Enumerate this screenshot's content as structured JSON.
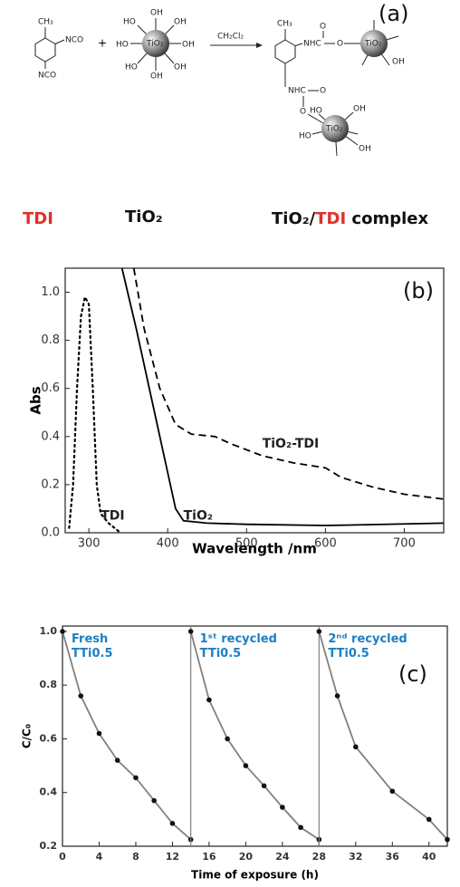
{
  "scheme": {
    "panel": "(a)",
    "ch3": "CH₃",
    "nco": "NCO",
    "plus": "+",
    "solvent": "CH₂Cl₂",
    "tio2": "TiO₂",
    "oh": "OH",
    "ho": "HO",
    "nhc": "NHC",
    "o": "O",
    "labels": {
      "tdi": "TDI",
      "tio2": "TiO₂",
      "complex": [
        "TiO₂/",
        "TDI",
        " complex"
      ]
    }
  },
  "chart_data": [
    {
      "type": "line",
      "panel": "(b)",
      "x_label": "Wavelength /nm",
      "y_label": "Abs",
      "xlim": [
        270,
        750
      ],
      "xticks": [
        300,
        400,
        500,
        600,
        700
      ],
      "ylim": [
        0,
        1.1
      ],
      "yticks": [
        {
          "value": 0,
          "label": "0.0"
        },
        0.2,
        0.4,
        0.6,
        0.8,
        {
          "value": 1,
          "label": "1.0"
        }
      ],
      "series": [
        {
          "name": "TDI",
          "color": "#000000",
          "style": "dotted",
          "x": [
            275,
            280,
            285,
            290,
            295,
            300,
            305,
            310,
            315,
            325,
            340
          ],
          "values": [
            0.02,
            0.2,
            0.6,
            0.9,
            0.98,
            0.95,
            0.6,
            0.2,
            0.08,
            0.04,
            0.0
          ]
        },
        {
          "name": "TiO₂",
          "color": "#000000",
          "style": "solid",
          "x": [
            342,
            360,
            380,
            400,
            410,
            420,
            450,
            500,
            600,
            750
          ],
          "values": [
            1.1,
            0.85,
            0.55,
            0.25,
            0.1,
            0.05,
            0.04,
            0.035,
            0.03,
            0.04
          ]
        },
        {
          "name": "TiO₂-TDI",
          "color": "#000000",
          "style": "dashed",
          "x": [
            357,
            370,
            390,
            410,
            430,
            460,
            480,
            520,
            560,
            600,
            620,
            660,
            700,
            750
          ],
          "values": [
            1.1,
            0.85,
            0.6,
            0.45,
            0.41,
            0.4,
            0.37,
            0.32,
            0.29,
            0.27,
            0.23,
            0.19,
            0.16,
            0.14
          ]
        }
      ]
    },
    {
      "type": "line",
      "panel": "(c)",
      "x_label": "Time of exposure (h)",
      "y_label": "C/C₀",
      "xlim": [
        0,
        42
      ],
      "xticks": [
        0,
        4,
        8,
        12,
        16,
        20,
        24,
        28,
        32,
        36,
        40
      ],
      "ylim": [
        0.2,
        1.02
      ],
      "yticks": [
        0.2,
        0.4,
        0.6,
        0.8,
        {
          "value": 1,
          "label": "1.0"
        }
      ],
      "markers": true,
      "label_color": "#1a7fc4",
      "series": [
        {
          "name": "Fresh TTi0.5",
          "color": "#808080",
          "x": [
            0,
            2,
            4,
            6,
            8,
            10,
            12,
            14
          ],
          "values": [
            1.0,
            0.76,
            0.62,
            0.52,
            0.455,
            0.37,
            0.285,
            0.225
          ]
        },
        {
          "name": "1ˢᵗ recycled TTi0.5",
          "color": "#808080",
          "x": [
            14,
            16,
            18,
            20,
            22,
            24,
            26,
            28
          ],
          "values": [
            1.0,
            0.745,
            0.6,
            0.5,
            0.425,
            0.345,
            0.27,
            0.225
          ]
        },
        {
          "name": "2ⁿᵈ recycled TTi0.5",
          "color": "#808080",
          "x": [
            28,
            30,
            32,
            36,
            40,
            42
          ],
          "values": [
            1.0,
            0.76,
            0.57,
            0.405,
            0.3,
            0.225
          ]
        }
      ]
    }
  ]
}
